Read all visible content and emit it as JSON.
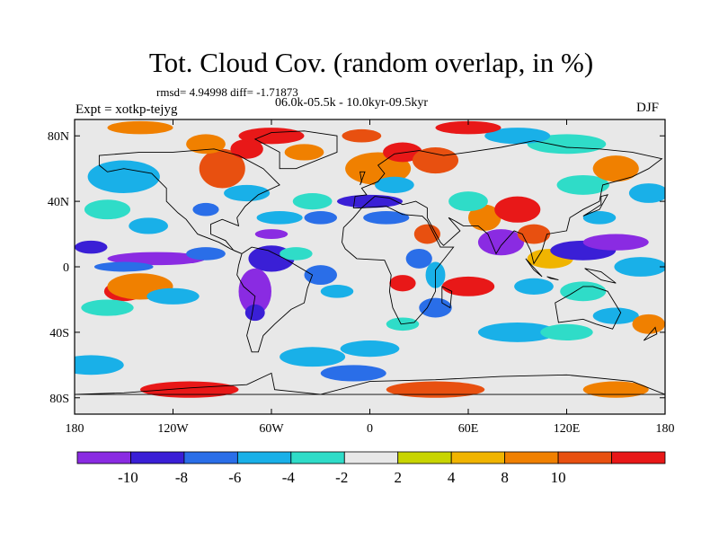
{
  "title": "Tot. Cloud Cov. (random overlap, in %)",
  "stats": "rmsd= 4.94998 diff= -1.71873",
  "period": "06.0k-05.5k - 10.0kyr-09.5kyr",
  "experiment": "Expt = xotkp-tejyg",
  "season": "DJF",
  "axes": {
    "lon_ticks": [
      {
        "value": -180,
        "label": "180"
      },
      {
        "value": -120,
        "label": "120W"
      },
      {
        "value": -60,
        "label": "60W"
      },
      {
        "value": 0,
        "label": "0"
      },
      {
        "value": 60,
        "label": "60E"
      },
      {
        "value": 120,
        "label": "120E"
      },
      {
        "value": 180,
        "label": "180"
      }
    ],
    "lat_ticks": [
      {
        "value": 80,
        "label": "80N"
      },
      {
        "value": 40,
        "label": "40N"
      },
      {
        "value": 0,
        "label": "0"
      },
      {
        "value": -40,
        "label": "40S"
      },
      {
        "value": -80,
        "label": "80S"
      }
    ],
    "lon_range": [
      -180,
      180
    ],
    "lat_range": [
      -90,
      90
    ]
  },
  "colorbar": {
    "colors": [
      "#8a2be2",
      "#3a1fd6",
      "#2a6ee8",
      "#19b0e8",
      "#2fdcc8",
      "#e8e8e8",
      "#c8d400",
      "#f0b400",
      "#f08000",
      "#e85010",
      "#e81818"
    ],
    "labels": [
      "-10",
      "-8",
      "-6",
      "-4",
      "-2",
      "2",
      "4",
      "8",
      "10"
    ]
  }
}
